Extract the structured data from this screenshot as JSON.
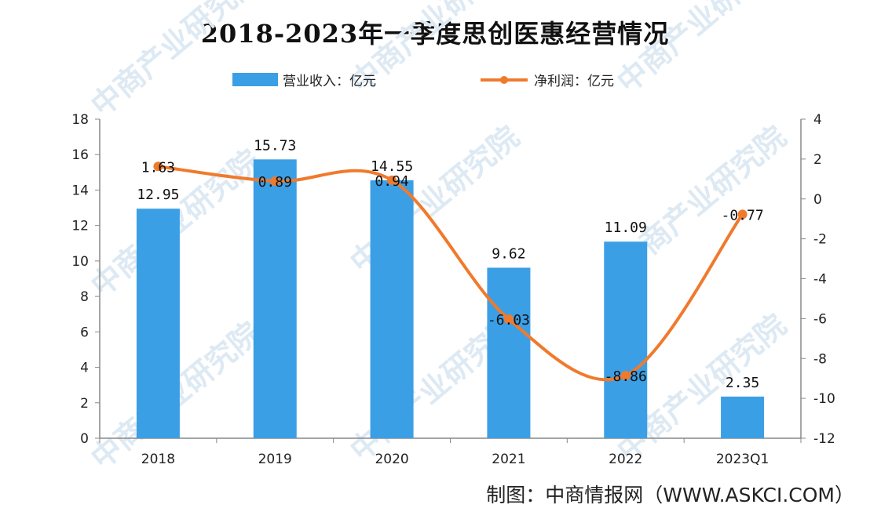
{
  "chart_data": {
    "type": "bar",
    "title": "2018-2023年一季度思创医惠经营情况",
    "categories": [
      "2018",
      "2019",
      "2020",
      "2021",
      "2022",
      "2023Q1"
    ],
    "series": [
      {
        "name": "营业收入：亿元",
        "type": "bar",
        "axis": "left",
        "values": [
          12.95,
          15.73,
          14.55,
          9.62,
          11.09,
          2.35
        ],
        "labels": [
          "12.95",
          "15.73",
          "14.55",
          "9.62",
          "11.09",
          "2.35"
        ]
      },
      {
        "name": "净利润：亿元",
        "type": "line",
        "axis": "right",
        "smooth": true,
        "values": [
          1.63,
          0.89,
          0.94,
          -6.03,
          -8.86,
          -0.77
        ],
        "labels": [
          "1.63",
          "0.89",
          "0.94",
          "-6.03",
          "-8.86",
          "-0.77"
        ]
      }
    ],
    "y_left": {
      "range": [
        0,
        18
      ],
      "ticks": [
        "0",
        "2",
        "4",
        "6",
        "8",
        "10",
        "12",
        "14",
        "16",
        "18"
      ]
    },
    "y_right": {
      "range": [
        -12,
        4
      ],
      "ticks": [
        "-12",
        "-10",
        "-8",
        "-6",
        "-4",
        "-2",
        "0",
        "2",
        "4"
      ]
    },
    "legend_position": "top",
    "grid": false,
    "colors": {
      "bar": "#3b9fe6",
      "line": "#f07a2c",
      "axis": "#888888"
    }
  },
  "watermark": "中商产业研究院",
  "source_note": "制图：中商情报网（WWW.ASKCI.COM）"
}
